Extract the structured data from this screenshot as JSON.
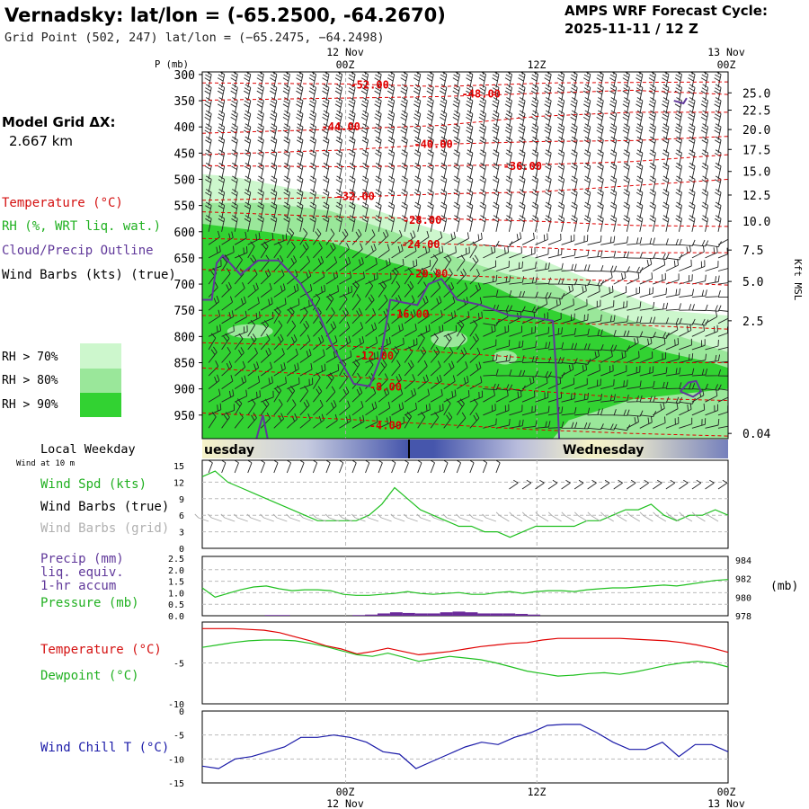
{
  "header": {
    "title": "Vernadsky:  lat/lon = (-65.2500, -64.2670)",
    "subtitle": "Grid Point (502, 247) lat/lon = (−65.2475, −64.2498)",
    "forecast_label": "AMPS WRF Forecast Cycle:",
    "forecast_cycle": "2025-11-11 / 12  Z"
  },
  "model_grid": {
    "label": "Model Grid ΔX:",
    "value": "2.667 km"
  },
  "left_legend": {
    "temperature": "Temperature (°C)",
    "rh": "RH (%, WRT liq. wat.)",
    "cloud": "Cloud/Precip Outline",
    "wind": "Wind Barbs (kts) (true)",
    "rh70": "RH > 70%",
    "rh80": "RH > 80%",
    "rh90": "RH > 90%",
    "local_weekday": "Local Weekday",
    "wind10": "Wind at 10 m",
    "wind_spd": "Wind Spd (kts)",
    "wind_barbs_true": "Wind Barbs (true)",
    "wind_barbs_grid": "Wind Barbs (grid)",
    "precip": "Precip (mm)",
    "liq_equiv": "liq. equiv.",
    "accum": "1-hr accum",
    "pressure": "Pressure (mb)",
    "temperature2": "Temperature (°C)",
    "dewpoint": "Dewpoint (°C)",
    "windchill": "Wind Chill T (°C)",
    "mb_unit": "(mb)"
  },
  "colors": {
    "rh70": "#cdf7cd",
    "rh80": "#9ae79a",
    "rh90": "#32d232",
    "temp": "#e00000",
    "dew": "#20c020",
    "cloud": "#60389a",
    "chill": "#1a1aa8",
    "precip": "#6a2a9a",
    "gridbarb": "#aaaaaa"
  },
  "time_axis": {
    "top_dates": [
      "12 Nov",
      "13 Nov"
    ],
    "top_hours": [
      "00Z",
      "12Z",
      "00Z"
    ],
    "bottom_hours": [
      "00Z",
      "12Z",
      "00Z"
    ],
    "bottom_dates": [
      "12 Nov",
      "13 Nov"
    ]
  },
  "weekday": {
    "left": "uesday",
    "right": "Wednesday"
  },
  "chart_data": [
    {
      "type": "heatmap",
      "name": "cross-section",
      "y_title": "P (mb)",
      "right_title": "Kft MSL",
      "x_range_hours": [
        -9,
        24
      ],
      "pressure_ticks": [
        "300",
        "350",
        "400",
        "450",
        "500",
        "550",
        "600",
        "650",
        "700",
        "750",
        "800",
        "850",
        "900",
        "950"
      ],
      "right_ticks": [
        "25.0",
        "22.5",
        "20.0",
        "17.5",
        "15.0",
        "12.5",
        "10.0",
        "7.5",
        "5.0",
        "2.5",
        "0.04"
      ],
      "right_tick_pressures": [
        335,
        368,
        405,
        443,
        485,
        530,
        580,
        635,
        695,
        770,
        985
      ],
      "isotherms": [
        {
          "label": "-52.00",
          "lx": 1.5,
          "lp": 320,
          "p": [
            [
              -9,
              316
            ],
            [
              0,
              318
            ],
            [
              6,
              323
            ],
            [
              13,
              316
            ],
            [
              24,
              314
            ]
          ]
        },
        {
          "label": "-48.00",
          "lx": 8.5,
          "lp": 337,
          "p": [
            [
              -9,
              349
            ],
            [
              0,
              345
            ],
            [
              6,
              342
            ],
            [
              12,
              336
            ],
            [
              18,
              330
            ],
            [
              24,
              338
            ]
          ]
        },
        {
          "label": "-44.00",
          "lx": -0.3,
          "lp": 400,
          "p": [
            [
              -9,
              412
            ],
            [
              0,
              404
            ],
            [
              6,
              397
            ],
            [
              12,
              380
            ],
            [
              18,
              372
            ],
            [
              24,
              372
            ]
          ]
        },
        {
          "label": "-40.00",
          "lx": 5.5,
          "lp": 433,
          "p": [
            [
              -9,
              453
            ],
            [
              0,
              444
            ],
            [
              6,
              433
            ],
            [
              12,
              428
            ],
            [
              18,
              426
            ],
            [
              24,
              418
            ]
          ]
        },
        {
          "label": "-36.00",
          "lx": 11.1,
          "lp": 475,
          "p": [
            [
              -9,
              474
            ],
            [
              0,
              476
            ],
            [
              6,
              474
            ],
            [
              12,
              472
            ],
            [
              18,
              466
            ],
            [
              24,
              453
            ]
          ]
        },
        {
          "label": "-32.00",
          "lx": 0.6,
          "lp": 533,
          "p": [
            [
              -9,
              540
            ],
            [
              0,
              534
            ],
            [
              6,
              528
            ],
            [
              12,
              524
            ],
            [
              18,
              512
            ],
            [
              24,
              500
            ]
          ]
        },
        {
          "label": "-28.00",
          "lx": 4.8,
          "lp": 578,
          "p": [
            [
              -9,
              562
            ],
            [
              0,
              572
            ],
            [
              6,
              575
            ],
            [
              12,
              580
            ],
            [
              18,
              588
            ],
            [
              24,
              590
            ]
          ]
        },
        {
          "label": "-24.00",
          "lx": 4.7,
          "lp": 624,
          "p": [
            [
              -9,
              613
            ],
            [
              0,
              618
            ],
            [
              6,
              623
            ],
            [
              12,
              630
            ],
            [
              18,
              640
            ],
            [
              24,
              640
            ]
          ]
        },
        {
          "label": "-20.00",
          "lx": 5.2,
          "lp": 680,
          "p": [
            [
              -9,
              672
            ],
            [
              0,
              680
            ],
            [
              6,
              682
            ],
            [
              12,
              690
            ],
            [
              18,
              694
            ],
            [
              24,
              702
            ]
          ]
        },
        {
          "label": "-16.00",
          "lx": 4.0,
          "lp": 757,
          "p": [
            [
              -9,
              760
            ],
            [
              0,
              760
            ],
            [
              6,
              758
            ],
            [
              12,
              774
            ],
            [
              18,
              778
            ],
            [
              24,
              786
            ]
          ]
        },
        {
          "label": "-12.00",
          "lx": 1.8,
          "lp": 837,
          "p": [
            [
              -9,
              812
            ],
            [
              0,
              818
            ],
            [
              6,
              830
            ],
            [
              12,
              842
            ],
            [
              18,
              850
            ],
            [
              24,
              850
            ]
          ]
        },
        {
          "label": "-8.00",
          "lx": 2.5,
          "lp": 896,
          "p": [
            [
              -9,
              860
            ],
            [
              0,
              876
            ],
            [
              6,
              890
            ],
            [
              12,
              904
            ],
            [
              18,
              918
            ],
            [
              24,
              922
            ]
          ]
        },
        {
          "label": "-4.00",
          "lx": 2.5,
          "lp": 970,
          "p": [
            [
              -9,
              946
            ],
            [
              0,
              958
            ],
            [
              6,
              968
            ],
            [
              12,
              978
            ],
            [
              18,
              985
            ],
            [
              24,
              990
            ]
          ]
        }
      ],
      "rh_regions": [
        {
          "level": "rh70",
          "p": [
            [
              -9,
              490
            ],
            [
              -7,
              495
            ],
            [
              -3,
              520
            ],
            [
              0,
              540
            ],
            [
              4,
              580
            ],
            [
              8,
              620
            ],
            [
              12,
              650
            ],
            [
              16,
              700
            ],
            [
              20,
              750
            ],
            [
              24,
              760
            ],
            [
              24,
              995
            ],
            [
              -9,
              995
            ]
          ]
        },
        {
          "level": "rh80",
          "p": [
            [
              -9,
              545
            ],
            [
              -5,
              545
            ],
            [
              -1,
              560
            ],
            [
              3,
              600
            ],
            [
              7,
              650
            ],
            [
              10,
              680
            ],
            [
              13,
              700
            ],
            [
              16,
              750
            ],
            [
              20,
              790
            ],
            [
              24,
              830
            ],
            [
              24,
              995
            ],
            [
              -9,
              995
            ]
          ]
        },
        {
          "level": "rh90",
          "p": [
            [
              -9,
              585
            ],
            [
              -5,
              600
            ],
            [
              -1,
              620
            ],
            [
              3,
              660
            ],
            [
              7,
              690
            ],
            [
              9,
              700
            ],
            [
              11,
              730
            ],
            [
              14,
              760
            ],
            [
              17,
              800
            ],
            [
              20,
              830
            ],
            [
              23,
              850
            ],
            [
              24,
              860
            ],
            [
              24,
              900
            ],
            [
              18,
              920
            ],
            [
              14,
              960
            ],
            [
              13,
              995
            ],
            [
              -9,
              995
            ]
          ]
        }
      ],
      "cloud_outline": [
        [
          -9,
          730
        ],
        [
          -8.4,
          730
        ],
        [
          -8.1,
          660
        ],
        [
          -7.7,
          645
        ],
        [
          -6.6,
          682
        ],
        [
          -5.5,
          655
        ],
        [
          -4.2,
          655
        ],
        [
          -2.8,
          700
        ],
        [
          -1.8,
          750
        ],
        [
          -0.8,
          820
        ],
        [
          0.5,
          890
        ],
        [
          1.5,
          895
        ],
        [
          2.2,
          840
        ],
        [
          2.8,
          730
        ],
        [
          3.6,
          735
        ],
        [
          4.5,
          740
        ],
        [
          5.2,
          700
        ],
        [
          6.0,
          690
        ],
        [
          7.0,
          730
        ],
        [
          8.5,
          740
        ],
        [
          10.3,
          760
        ],
        [
          12.0,
          765
        ],
        [
          13.0,
          770
        ],
        [
          13.2,
          860
        ],
        [
          13.4,
          995
        ]
      ],
      "cloud_outline2": [
        [
          -5.6,
          995
        ],
        [
          -5.2,
          950
        ],
        [
          -4.9,
          995
        ]
      ],
      "cloud_blob": [
        [
          21.0,
          905
        ],
        [
          21.5,
          888
        ],
        [
          22.0,
          885
        ],
        [
          22.3,
          905
        ],
        [
          21.8,
          915
        ],
        [
          21.0,
          905
        ]
      ]
    },
    {
      "type": "line",
      "name": "wind-speed",
      "y_ticks": [
        "15",
        "12",
        "9",
        "6",
        "3",
        "0"
      ],
      "ylim": [
        0,
        15
      ],
      "series": [
        {
          "color": "#20c020",
          "values": [
            13,
            14,
            12,
            11,
            10,
            9,
            8,
            7,
            6,
            5,
            5,
            5,
            5,
            6,
            8,
            11,
            9,
            7,
            6,
            5,
            4,
            4,
            3,
            3,
            2,
            3,
            4,
            4,
            4,
            4,
            5,
            5,
            6,
            7,
            7,
            8,
            6,
            5,
            6,
            6,
            7,
            6
          ]
        }
      ]
    },
    {
      "type": "line",
      "name": "precip-pressure",
      "y_ticks": [
        "2.5",
        "2.0",
        "1.5",
        "1.0",
        "0.5",
        "0.0"
      ],
      "right_ticks": [
        "984",
        "982",
        "980",
        "978"
      ],
      "ylim": [
        0,
        2.5
      ],
      "right_lim": [
        978,
        984
      ],
      "pressure": [
        981.0,
        980.0,
        980.4,
        980.8,
        981.1,
        981.2,
        980.9,
        980.7,
        980.8,
        980.8,
        980.7,
        980.3,
        980.2,
        980.2,
        980.3,
        980.4,
        980.6,
        980.4,
        980.3,
        980.4,
        980.5,
        980.3,
        980.3,
        980.5,
        980.6,
        980.4,
        980.6,
        980.7,
        980.7,
        980.6,
        980.8,
        980.9,
        981.0,
        981.0,
        981.1,
        981.2,
        981.3,
        981.2,
        981.4,
        981.6,
        981.8,
        981.9
      ],
      "precip": [
        0,
        0,
        0,
        0,
        0,
        0.03,
        0.03,
        0,
        0,
        0,
        0,
        0,
        0.03,
        0.05,
        0.1,
        0.15,
        0.12,
        0.1,
        0.1,
        0.15,
        0.18,
        0.15,
        0.1,
        0.1,
        0.1,
        0.08,
        0.05,
        0,
        0,
        0,
        0,
        0,
        0,
        0,
        0,
        0,
        0,
        0,
        0,
        0,
        0,
        0
      ]
    },
    {
      "type": "line",
      "name": "temperature-dewpoint",
      "y_ticks": [
        "-5",
        "-10"
      ],
      "ylim": [
        -10,
        0
      ],
      "series": [
        {
          "color": "#e00000",
          "values": [
            -0.8,
            -0.8,
            -0.8,
            -0.9,
            -1.0,
            -1.3,
            -1.8,
            -2.3,
            -2.9,
            -3.3,
            -3.9,
            -3.6,
            -3.2,
            -3.6,
            -4.0,
            -3.8,
            -3.6,
            -3.3,
            -3.0,
            -2.8,
            -2.6,
            -2.5,
            -2.2,
            -2.0,
            -2.0,
            -2.0,
            -2.0,
            -2.0,
            -2.1,
            -2.2,
            -2.3,
            -2.5,
            -2.8,
            -3.2,
            -3.7
          ]
        },
        {
          "color": "#20c020",
          "values": [
            -3.1,
            -2.8,
            -2.5,
            -2.3,
            -2.2,
            -2.2,
            -2.3,
            -2.6,
            -3.0,
            -3.5,
            -4.0,
            -4.2,
            -3.8,
            -4.3,
            -4.8,
            -4.5,
            -4.2,
            -4.4,
            -4.6,
            -5.0,
            -5.5,
            -6.0,
            -6.3,
            -6.6,
            -6.5,
            -6.3,
            -6.2,
            -6.4,
            -6.1,
            -5.7,
            -5.3,
            -5.0,
            -4.8,
            -5.0,
            -5.5
          ]
        }
      ]
    },
    {
      "type": "line",
      "name": "wind-chill",
      "y_ticks": [
        "0",
        "-5",
        "-10",
        "-15"
      ],
      "ylim": [
        -15,
        0
      ],
      "series": [
        {
          "color": "#1a1aa8",
          "values": [
            -11.5,
            -12,
            -10,
            -9.5,
            -8.5,
            -7.5,
            -5.5,
            -5.5,
            -5,
            -5.5,
            -6.5,
            -8.5,
            -9,
            -12,
            -10.5,
            -9,
            -7.5,
            -6.5,
            -7,
            -5.5,
            -4.5,
            -3,
            -2.8,
            -2.8,
            -4.5,
            -6.5,
            -8,
            -8,
            -6.5,
            -9.5,
            -7,
            -7,
            -8.5
          ]
        }
      ]
    }
  ]
}
